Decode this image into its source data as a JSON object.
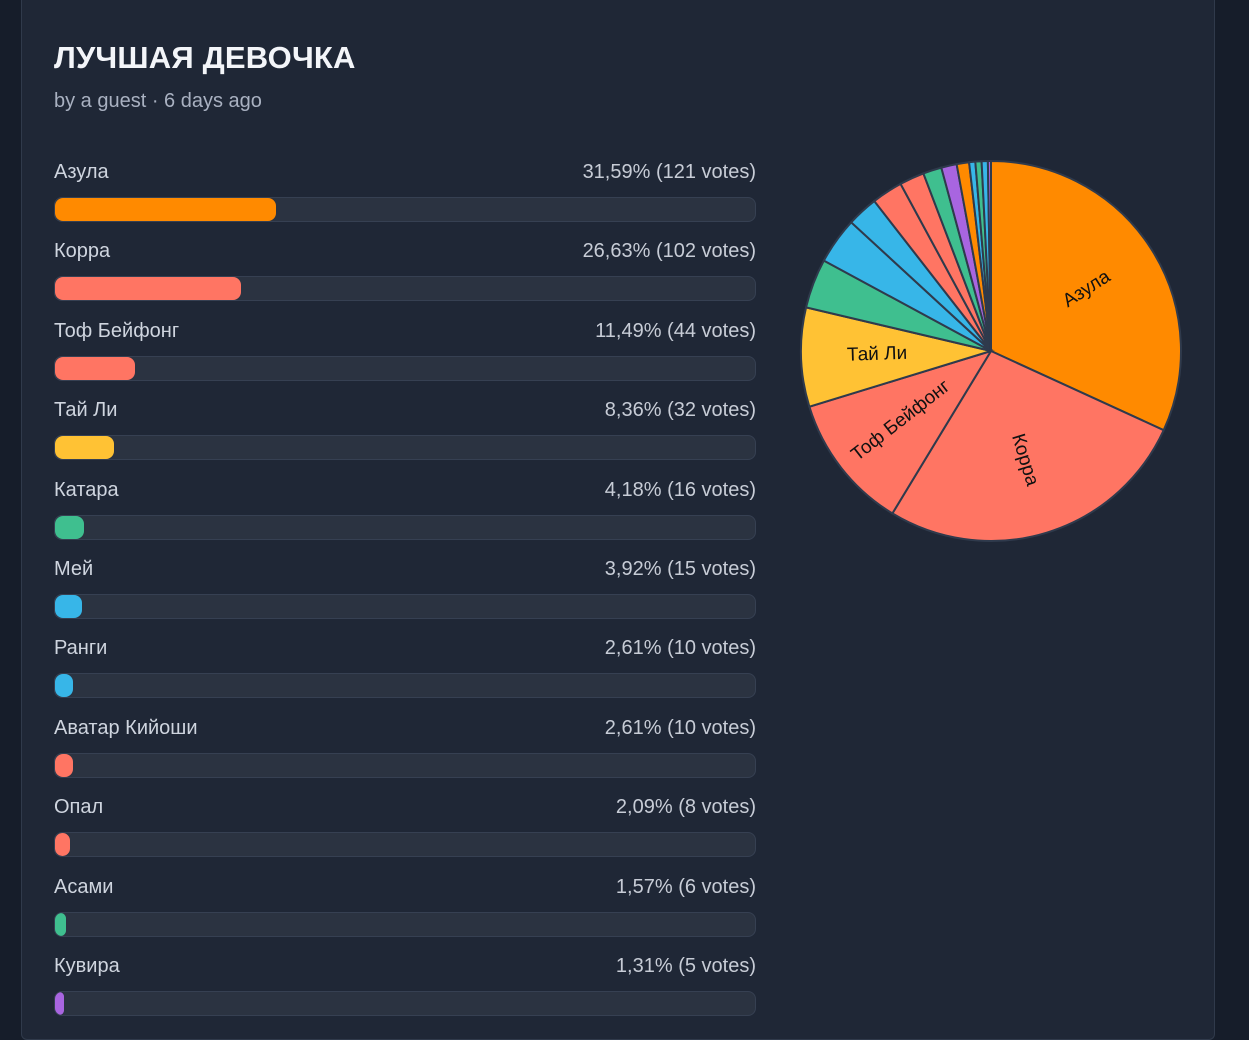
{
  "poll": {
    "title": "ЛУЧШАЯ ДЕВОЧКА",
    "meta": "by a guest · 6 days ago"
  },
  "colors": {
    "background": "#161d2a",
    "card": "#1f2736",
    "accent_bar": "#8b8ff5",
    "track": "#2b3341"
  },
  "options": [
    {
      "name": "Азула",
      "stat": "31,59% (121 votes)",
      "percent": 31.59,
      "votes": 121,
      "color": "#ff8a00"
    },
    {
      "name": "Корра",
      "stat": "26,63% (102 votes)",
      "percent": 26.63,
      "votes": 102,
      "color": "#ff7563"
    },
    {
      "name": "Тоф Бейфонг",
      "stat": "11,49% (44 votes)",
      "percent": 11.49,
      "votes": 44,
      "color": "#ff7563"
    },
    {
      "name": "Тай Ли",
      "stat": "8,36% (32 votes)",
      "percent": 8.36,
      "votes": 32,
      "color": "#ffc234"
    },
    {
      "name": "Катара",
      "stat": "4,18% (16 votes)",
      "percent": 4.18,
      "votes": 16,
      "color": "#3fbf8f"
    },
    {
      "name": "Мей",
      "stat": "3,92% (15 votes)",
      "percent": 3.92,
      "votes": 15,
      "color": "#37b6e8"
    },
    {
      "name": "Ранги",
      "stat": "2,61% (10 votes)",
      "percent": 2.61,
      "votes": 10,
      "color": "#37b6e8"
    },
    {
      "name": "Аватар Кийоши",
      "stat": "2,61% (10 votes)",
      "percent": 2.61,
      "votes": 10,
      "color": "#ff7563"
    },
    {
      "name": "Опал",
      "stat": "2,09% (8 votes)",
      "percent": 2.09,
      "votes": 8,
      "color": "#ff7563"
    },
    {
      "name": "Асами",
      "stat": "1,57% (6 votes)",
      "percent": 1.57,
      "votes": 6,
      "color": "#3fbf8f"
    },
    {
      "name": "Кувира",
      "stat": "1,31% (5 votes)",
      "percent": 1.31,
      "votes": 5,
      "color": "#a865e0"
    }
  ],
  "chart_data": {
    "type": "pie",
    "labels": [
      "Азула",
      "Корра",
      "Тоф Бейфонг",
      "Тай Ли",
      "Катара",
      "Мей",
      "Ранги",
      "Аватар Кийоши",
      "Опал",
      "Асами",
      "Кувира",
      "",
      "",
      "",
      "",
      ""
    ],
    "values": [
      121,
      102,
      44,
      32,
      16,
      15,
      10,
      10,
      8,
      6,
      5,
      4,
      2,
      2,
      2,
      1
    ],
    "colors": [
      "#ff8a00",
      "#ff7563",
      "#ff7563",
      "#ffc234",
      "#3fbf8f",
      "#37b6e8",
      "#37b6e8",
      "#ff7563",
      "#ff7563",
      "#3fbf8f",
      "#a865e0",
      "#ff8a00",
      "#37b6e8",
      "#3fbf8f",
      "#37b6e8",
      "#a865e0"
    ],
    "slice_labels_shown": [
      "Азула",
      "Корра",
      "Тоф Бейфонг",
      "Тай Ли"
    ]
  }
}
